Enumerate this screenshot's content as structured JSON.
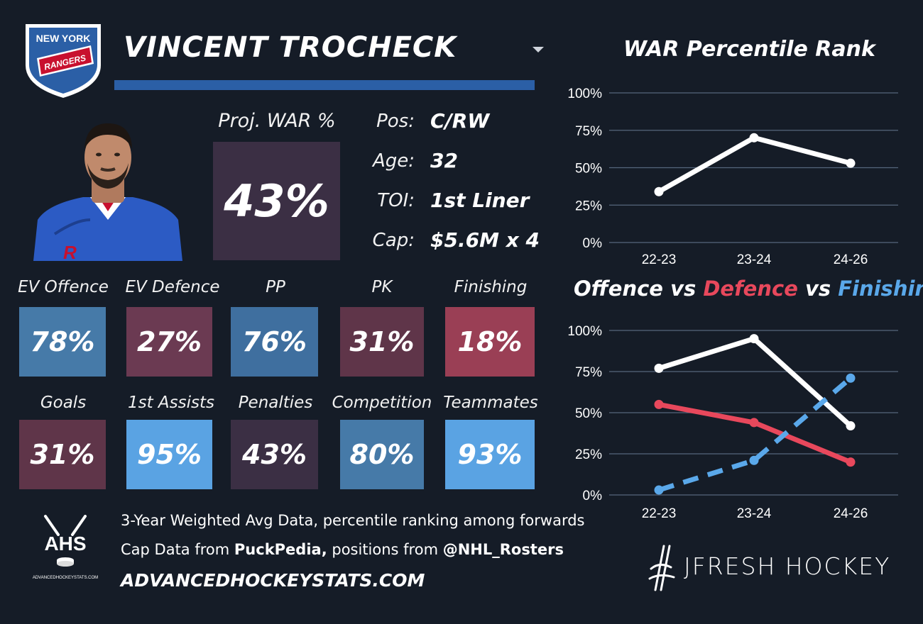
{
  "player": {
    "name": "VINCENT TROCHECK",
    "team_logo": {
      "line1": "NEW YORK",
      "line2": "RANGERS"
    }
  },
  "proj_war": {
    "label": "Proj. WAR %",
    "value": "43%"
  },
  "bio": [
    {
      "label": "Pos:",
      "value": "C/RW"
    },
    {
      "label": "Age:",
      "value": "32"
    },
    {
      "label": "TOI:",
      "value": "1st Liner"
    },
    {
      "label": "Cap:",
      "value": "$5.6M x 4"
    }
  ],
  "stats": [
    {
      "label": "EV Offence",
      "value": "78%",
      "color": "#467aa8"
    },
    {
      "label": "EV Defence",
      "value": "27%",
      "color": "#6b3a52"
    },
    {
      "label": "PP",
      "value": "76%",
      "color": "#3f6f9f"
    },
    {
      "label": "PK",
      "value": "31%",
      "color": "#5f3549"
    },
    {
      "label": "Finishing",
      "value": "18%",
      "color": "#9a3f55"
    },
    {
      "label": "Goals",
      "value": "31%",
      "color": "#5f3549"
    },
    {
      "label": "1st Assists",
      "value": "95%",
      "color": "#5aa3e3"
    },
    {
      "label": "Penalties",
      "value": "43%",
      "color": "#3b2f44"
    },
    {
      "label": "Competition",
      "value": "80%",
      "color": "#467aa8"
    },
    {
      "label": "Teammates",
      "value": "93%",
      "color": "#5aa3e3"
    }
  ],
  "footer": {
    "line1": "3-Year Weighted Avg Data, percentile ranking among forwards",
    "line2_prefix": "Cap Data from ",
    "line2_source1": "PuckPedia,",
    "line2_middle": " positions from ",
    "line2_source2": "@NHL_Rosters",
    "url": "ADVANCEDHOCKEYSTATS.COM",
    "ahs_logo_text": "AHS",
    "ahs_logo_sub": "ADVANCEDHOCKEYSTATS.COM",
    "brand": "JFRESH HOCKEY"
  },
  "chart_data": [
    {
      "type": "line",
      "title": "WAR Percentile Rank",
      "categories": [
        "22-23",
        "23-24",
        "24-26"
      ],
      "yticks": [
        "0%",
        "25%",
        "50%",
        "75%",
        "100%"
      ],
      "ylim": [
        0,
        100
      ],
      "grid": true,
      "series": [
        {
          "values": [
            34,
            70,
            53
          ],
          "color": "#ffffff",
          "dashed": false
        }
      ]
    },
    {
      "type": "line",
      "title_parts": [
        "Offence",
        " vs ",
        "Defence",
        " vs ",
        "Finishing"
      ],
      "categories": [
        "22-23",
        "23-24",
        "24-26"
      ],
      "yticks": [
        "0%",
        "25%",
        "50%",
        "75%",
        "100%"
      ],
      "ylim": [
        0,
        100
      ],
      "grid": true,
      "series": [
        {
          "name": "Offence",
          "values": [
            77,
            95,
            42
          ],
          "color": "#ffffff",
          "dashed": false
        },
        {
          "name": "Defence",
          "values": [
            55,
            44,
            20
          ],
          "color": "#e8485c",
          "dashed": false
        },
        {
          "name": "Finishing",
          "values": [
            3,
            21,
            71
          ],
          "color": "#5aa8ea",
          "dashed": true
        }
      ]
    }
  ]
}
